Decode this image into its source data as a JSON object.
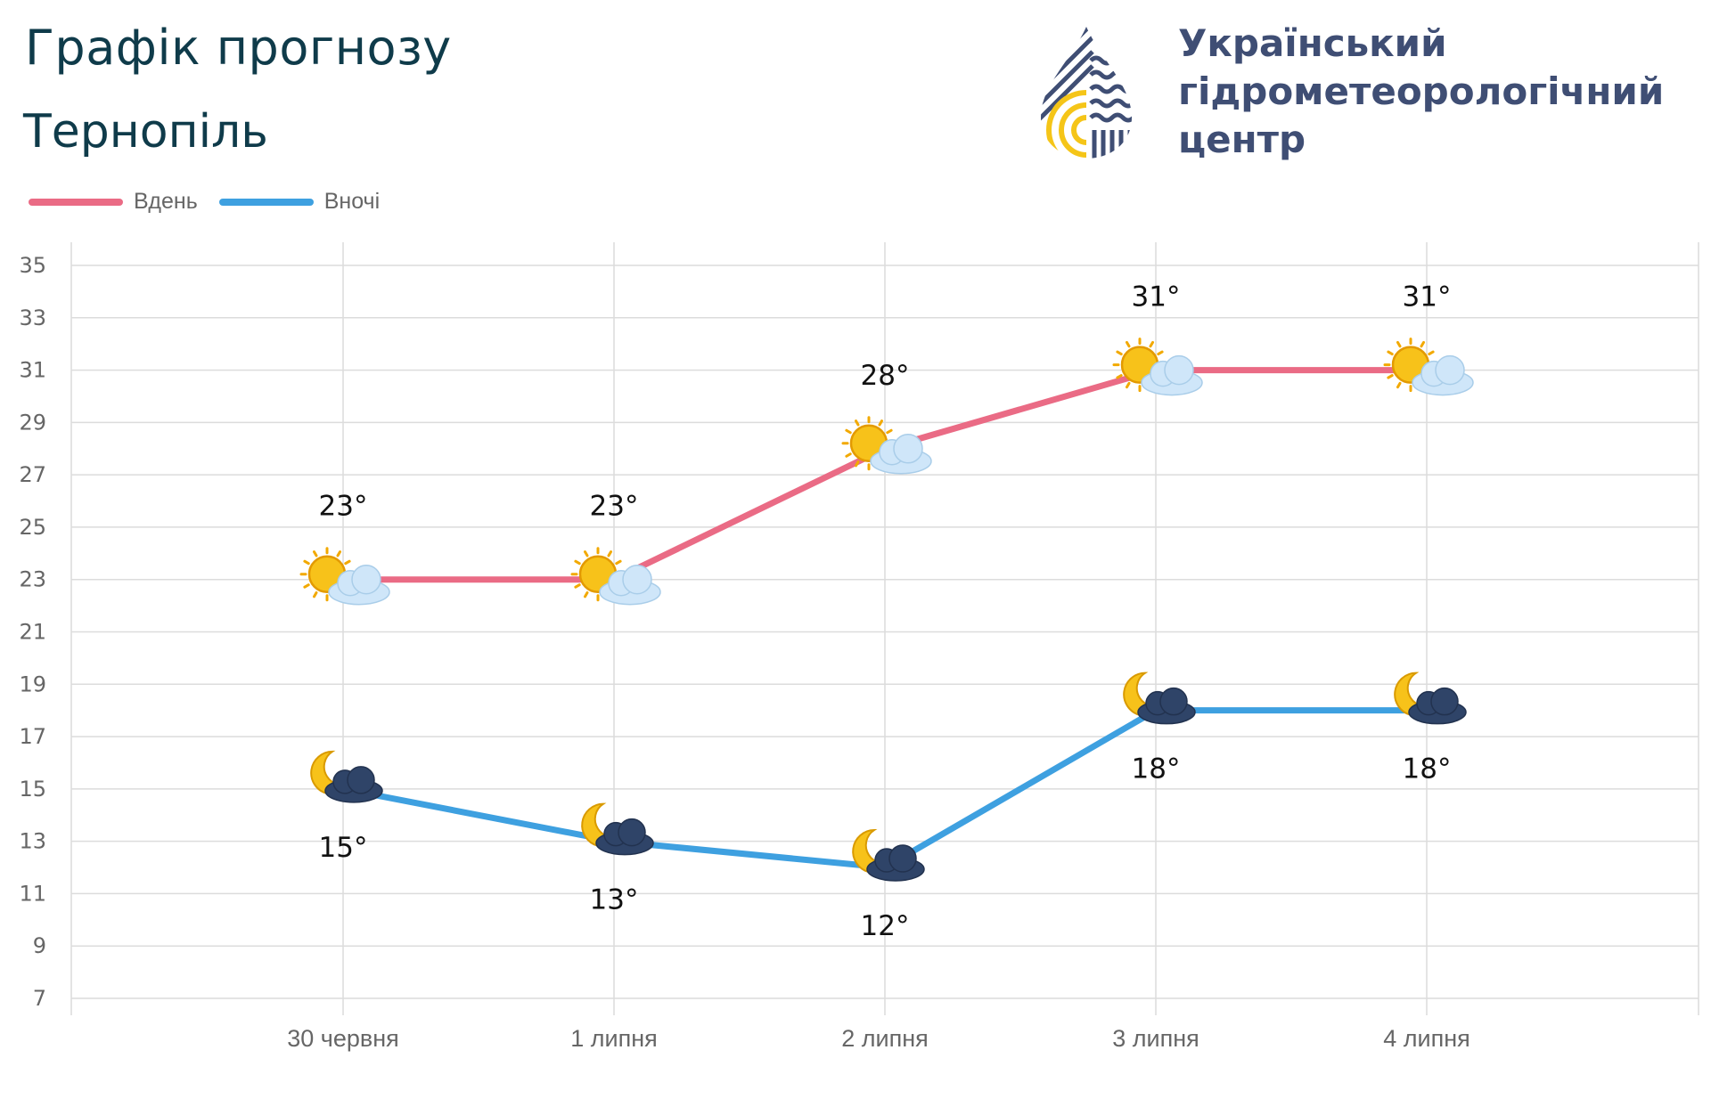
{
  "header": {
    "title": "Графік прогнозу",
    "city": "Тернопіль"
  },
  "organization": {
    "line1": "Український",
    "line2": "гідрометеорологічний",
    "line3": "центр"
  },
  "legend": {
    "day_label": "Вдень",
    "night_label": "Вночі"
  },
  "colors": {
    "day": "#ea6b85",
    "night": "#3ea0e0",
    "text_dark": "#0f3b4a",
    "org_text": "#3f4e74",
    "logo_navy": "#3f4e74",
    "logo_yellow": "#f5c518"
  },
  "chart_data": {
    "type": "line",
    "title": "",
    "xlabel": "",
    "ylabel": "",
    "categories": [
      "30 червня",
      "1 липня",
      "2 липня",
      "3 липня",
      "4 липня"
    ],
    "series": [
      {
        "name": "Вдень",
        "values": [
          23,
          23,
          28,
          31,
          31
        ],
        "labels": [
          "23°",
          "23°",
          "28°",
          "31°",
          "31°"
        ],
        "icons": [
          "sun-cloud-icon",
          "sun-cloud-icon",
          "sun-cloud-icon",
          "sun-cloud-icon",
          "sun-cloud-icon"
        ]
      },
      {
        "name": "Вночі",
        "values": [
          15,
          13,
          12,
          18,
          18
        ],
        "labels": [
          "15°",
          "13°",
          "12°",
          "18°",
          "18°"
        ],
        "icons": [
          "moon-cloud-icon",
          "moon-cloud-icon",
          "moon-cloud-icon",
          "moon-cloud-icon",
          "moon-cloud-icon"
        ]
      }
    ],
    "yticks": [
      7,
      9,
      11,
      13,
      15,
      17,
      19,
      21,
      23,
      25,
      27,
      29,
      31,
      33,
      35
    ],
    "ylim": [
      7,
      35
    ],
    "grid": true,
    "legend_position": "top-left"
  }
}
